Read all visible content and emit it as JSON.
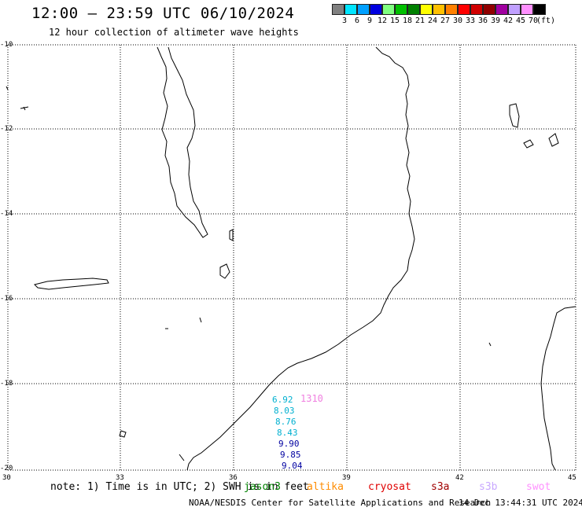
{
  "header": {
    "title": "12:00 – 23:59 UTC 06/10/2024",
    "subtitle": "12 hour collection of altimeter wave heights"
  },
  "colorbar": {
    "colors": [
      "#808080",
      "#00e5ff",
      "#00a0ff",
      "#0000e0",
      "#80ff80",
      "#00c000",
      "#008000",
      "#ffff00",
      "#ffc000",
      "#ff8000",
      "#ff0000",
      "#d00000",
      "#900000",
      "#a000a0",
      "#c0a0ff",
      "#ff90ff",
      "#000000"
    ],
    "labels": [
      "3",
      "6",
      "9",
      "12",
      "15",
      "18",
      "21",
      "24",
      "27",
      "30",
      "33",
      "36",
      "39",
      "42",
      "45",
      "70",
      "(ft)"
    ]
  },
  "axes": {
    "lat_labels": [
      "-10",
      "-12",
      "-14",
      "-16",
      "-18",
      "-20"
    ],
    "lon_labels": [
      "30",
      "33",
      "36",
      "39",
      "42",
      "45"
    ]
  },
  "observations": [
    {
      "value": "6.92",
      "color": "#00b0d0"
    },
    {
      "value": "1310",
      "color": "#f080e0"
    },
    {
      "value": "8.03",
      "color": "#00b0d0"
    },
    {
      "value": "8.76",
      "color": "#00b0d0"
    },
    {
      "value": "8.43",
      "color": "#00b0d0"
    },
    {
      "value": "9.90",
      "color": "#0000a0"
    },
    {
      "value": "9.85",
      "color": "#0000a0"
    },
    {
      "value": "9.04",
      "color": "#0000a0"
    }
  ],
  "footer": {
    "note": "note: 1) Time is in UTC; 2) SWH is in feet",
    "satellites": [
      {
        "name": "jason3",
        "color": "#008000"
      },
      {
        "name": "altika",
        "color": "#ff8c00"
      },
      {
        "name": "cryosat",
        "color": "#e00000"
      },
      {
        "name": "s3a",
        "color": "#a00000"
      },
      {
        "name": "s3b",
        "color": "#c8a8ff"
      },
      {
        "name": "swot",
        "color": "#ff90ff"
      }
    ],
    "credit": "NOAA/NESDIS Center for Satellite Applications and Research",
    "timestamp": "14 Dec 13:44:31 UTC 2024"
  }
}
